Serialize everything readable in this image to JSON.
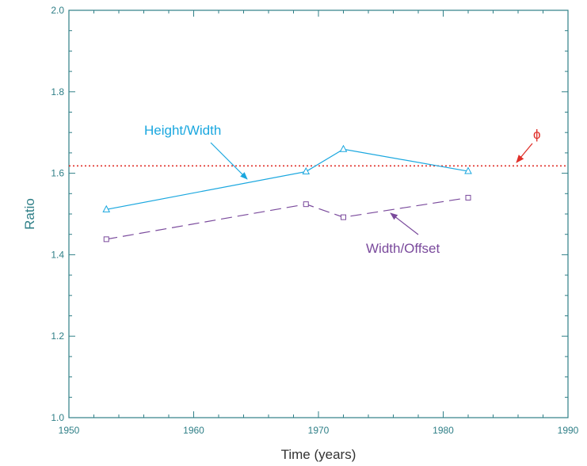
{
  "chart_data": {
    "type": "line",
    "xlabel": "Time (years)",
    "ylabel": "Ratio",
    "xlim": [
      1950,
      1990
    ],
    "ylim": [
      1.0,
      2.0
    ],
    "x_ticks": [
      "1950",
      "1960",
      "1970",
      "1980",
      "1990"
    ],
    "y_ticks": [
      "1.0",
      "1.2",
      "1.4",
      "1.6",
      "1.8",
      "2.0"
    ],
    "grid": false,
    "series": [
      {
        "name": "Height/Width",
        "marker": "triangle",
        "line_style": "solid",
        "color": "#1aa7df",
        "points": [
          [
            1953,
            1.511
          ],
          [
            1969,
            1.604
          ],
          [
            1972,
            1.659
          ],
          [
            1982,
            1.605
          ]
        ]
      },
      {
        "name": "Width/Offset",
        "marker": "square",
        "line_style": "dashed",
        "color": "#7a4a9c",
        "points": [
          [
            1953,
            1.438
          ],
          [
            1969,
            1.524
          ],
          [
            1972,
            1.492
          ],
          [
            1982,
            1.54
          ]
        ]
      }
    ],
    "reference_line": {
      "label": "ϕ",
      "value": 1.618,
      "line_style": "dotted",
      "color": "#e0302a"
    },
    "annotations": [
      {
        "text": "Height/Width",
        "target_series": "Height/Width"
      },
      {
        "text": "Width/Offset",
        "target_series": "Width/Offset"
      },
      {
        "text": "ϕ",
        "target": "reference_line"
      }
    ],
    "colors": {
      "axis": "#2f7f87",
      "tick_label": "#2f7f87",
      "ylabel": "#2f7f87",
      "xlabel": "#333333"
    }
  }
}
